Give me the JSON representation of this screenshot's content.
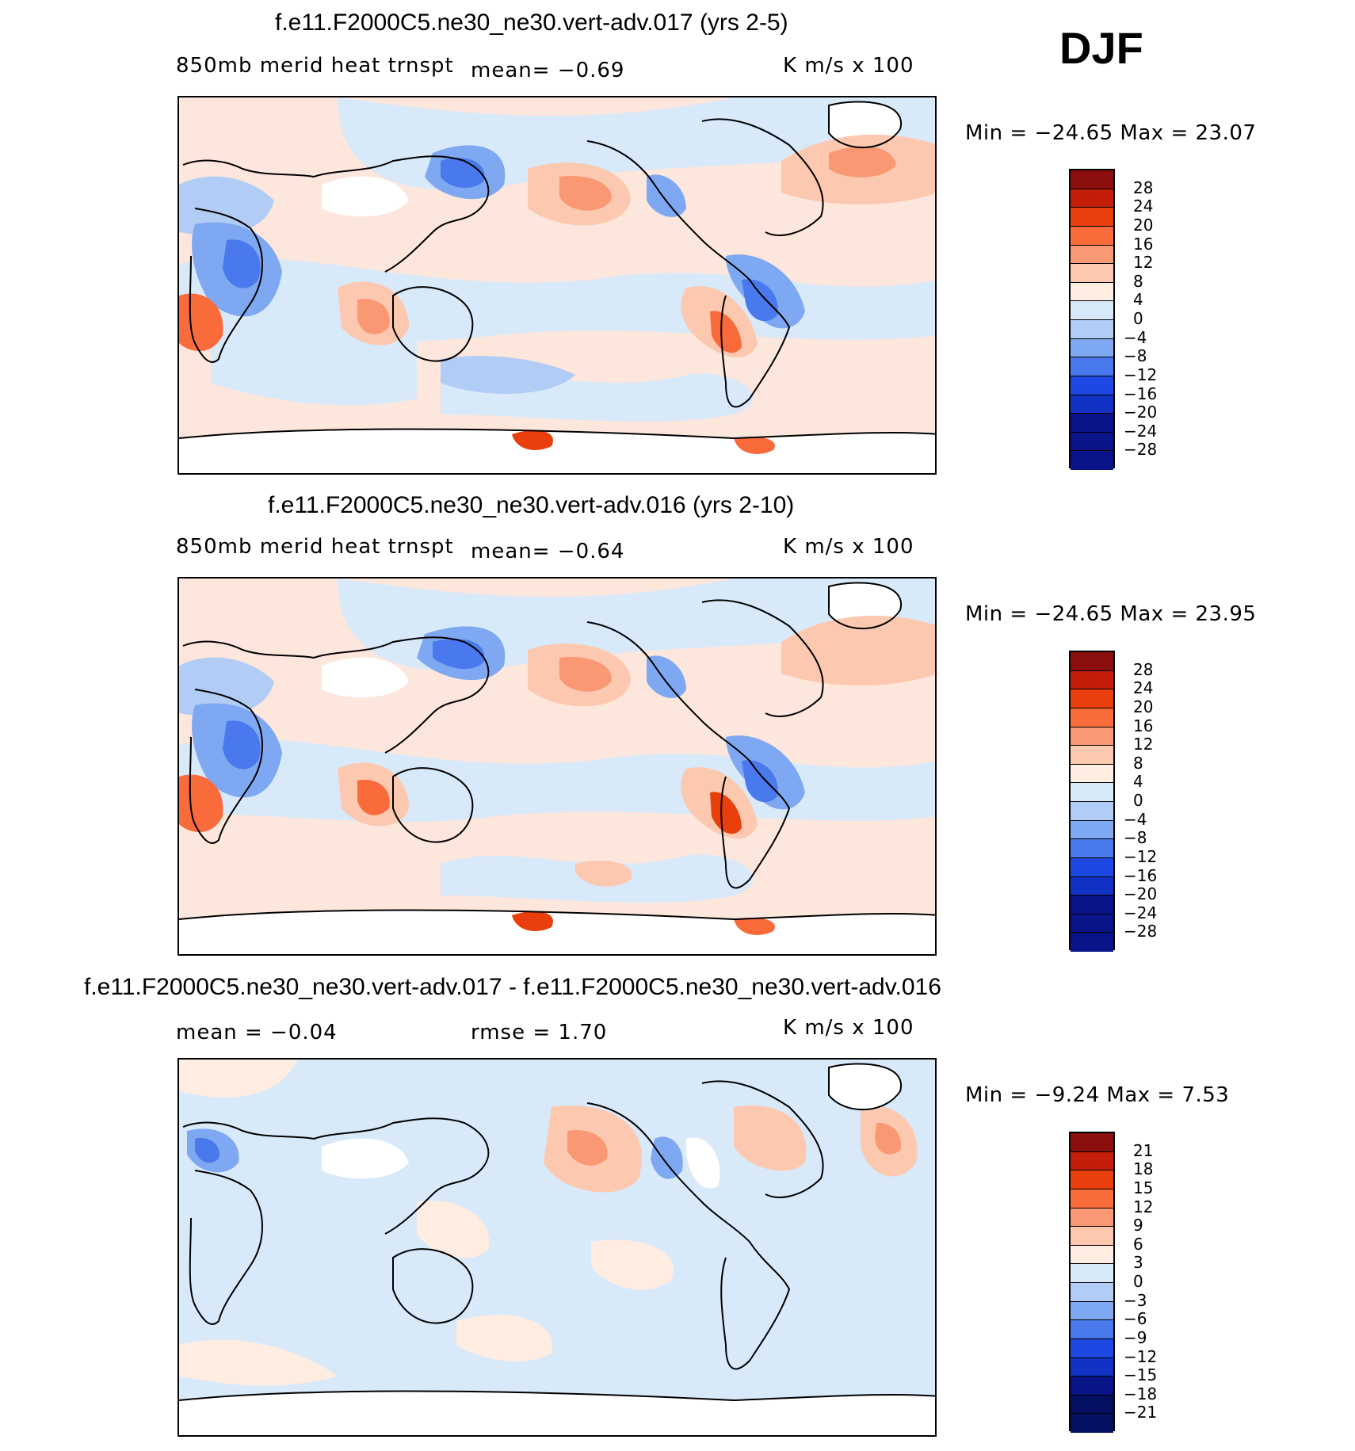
{
  "season": "DJF",
  "palette_10": [
    "#8b0f0f",
    "#c21e09",
    "#e93f0c",
    "#fa6b3c",
    "#f99873",
    "#fcc9b0",
    "#ffede2",
    "#d8e9fa",
    "#b1cdf6",
    "#7fa8f2",
    "#4979ec",
    "#1d48e1",
    "#1132c2",
    "#0a1489"
  ],
  "palette_diff": [
    "#8b0f0f",
    "#c21e09",
    "#e93f0c",
    "#fa6b3c",
    "#f99873",
    "#fcc9b0",
    "#ffede2",
    "#d8e9fa",
    "#b1cdf6",
    "#7fa8f2",
    "#4979ec",
    "#1d48e1",
    "#1132c2",
    "#0a1489",
    "#061060",
    "#061060"
  ],
  "panels": [
    {
      "title": "f.e11.F2000C5.ne30_ne30.vert-adv.017 (yrs 2-5)",
      "variable": "850mb merid heat trnspt",
      "mean_text": "mean=   −0.69",
      "units": "K m/s x 100",
      "minmax": "Min = −24.65 Max =   23.07",
      "colorbar_labels": [
        "28",
        "24",
        "20",
        "16",
        "12",
        "8",
        "4",
        "0",
        "−4",
        "−8",
        "−12",
        "−16",
        "−20",
        "−24",
        "−28"
      ]
    },
    {
      "title": "f.e11.F2000C5.ne30_ne30.vert-adv.016 (yrs 2-10)",
      "variable": "850mb merid heat trnspt",
      "mean_text": "mean=   −0.64",
      "units": "K m/s x 100",
      "minmax": "Min = −24.65 Max =   23.95",
      "colorbar_labels": [
        "28",
        "24",
        "20",
        "16",
        "12",
        "8",
        "4",
        "0",
        "−4",
        "−8",
        "−12",
        "−16",
        "−20",
        "−24",
        "−28"
      ]
    },
    {
      "title": "f.e11.F2000C5.ne30_ne30.vert-adv.017 - f.e11.F2000C5.ne30_ne30.vert-adv.016",
      "mean_text": "mean =   −0.04",
      "rmse_text": "rmse =    1.70",
      "units": "K m/s x 100",
      "minmax": "Min =   −9.24 Max =    7.53",
      "colorbar_labels": [
        "21",
        "18",
        "15",
        "12",
        "9",
        "6",
        "3",
        "0",
        "−3",
        "−6",
        "−9",
        "−12",
        "−15",
        "−18",
        "−21"
      ]
    }
  ]
}
